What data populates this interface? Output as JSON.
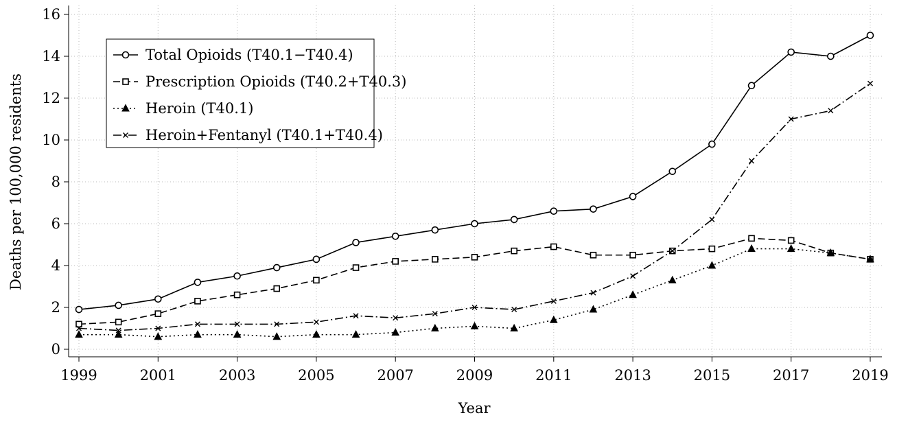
{
  "chart_data": {
    "type": "line",
    "x_label": "Year",
    "y_label": "Deaths per 100,000 residents",
    "x": [
      1999,
      2000,
      2001,
      2002,
      2003,
      2004,
      2005,
      2006,
      2007,
      2008,
      2009,
      2010,
      2011,
      2012,
      2013,
      2014,
      2015,
      2016,
      2017,
      2018,
      2019
    ],
    "series": [
      {
        "name": "Total Opioids (T40.1−T40.4)",
        "color": "#000000",
        "marker": "circle",
        "dash": "solid",
        "values": [
          1.9,
          2.1,
          2.4,
          3.2,
          3.5,
          3.9,
          4.3,
          5.1,
          5.4,
          5.7,
          6.0,
          6.2,
          6.6,
          6.7,
          7.3,
          8.5,
          9.8,
          12.6,
          14.2,
          14.0,
          15.0
        ]
      },
      {
        "name": "Prescription Opioids (T40.2+T40.3)",
        "color": "#000000",
        "marker": "square",
        "dash": "dashed",
        "values": [
          1.2,
          1.3,
          1.7,
          2.3,
          2.6,
          2.9,
          3.3,
          3.9,
          4.2,
          4.3,
          4.4,
          4.7,
          4.9,
          4.5,
          4.5,
          4.7,
          4.8,
          5.3,
          5.2,
          4.6,
          4.3
        ]
      },
      {
        "name": "Heroin (T40.1)",
        "color": "#000000",
        "marker": "triangle",
        "dash": "dotted",
        "values": [
          0.7,
          0.7,
          0.6,
          0.7,
          0.7,
          0.6,
          0.7,
          0.7,
          0.8,
          1.0,
          1.1,
          1.0,
          1.4,
          1.9,
          2.6,
          3.3,
          4.0,
          4.8,
          4.8,
          4.6,
          4.3
        ]
      },
      {
        "name": "Heroin+Fentanyl (T40.1+T40.4)",
        "color": "#000000",
        "marker": "cross",
        "dash": "dashdot",
        "values": [
          1.0,
          0.9,
          1.0,
          1.2,
          1.2,
          1.2,
          1.3,
          1.6,
          1.5,
          1.7,
          2.0,
          1.9,
          2.3,
          2.7,
          3.5,
          4.7,
          6.2,
          9.0,
          11.0,
          11.4,
          12.7
        ]
      }
    ],
    "xlim": [
      1999,
      2019
    ],
    "xticks": [
      1999,
      2001,
      2003,
      2005,
      2007,
      2009,
      2011,
      2013,
      2015,
      2017,
      2019
    ],
    "ylim": [
      0,
      16
    ],
    "yticks": [
      0,
      2,
      4,
      6,
      8,
      10,
      12,
      14,
      16
    ],
    "grid": true,
    "legend": "upper left"
  }
}
